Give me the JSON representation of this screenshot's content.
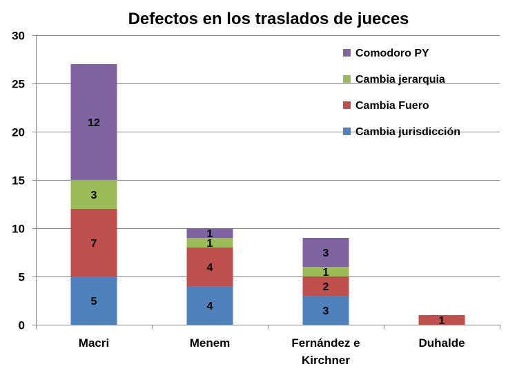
{
  "chart_data": {
    "type": "bar",
    "stacked": true,
    "title": "Defectos en los traslados de jueces",
    "xlabel": "",
    "ylabel": "",
    "ylim": [
      0,
      30
    ],
    "yticks": [
      0,
      5,
      10,
      15,
      20,
      25,
      30
    ],
    "grid": true,
    "legend_position": "top-right",
    "categories": [
      [
        "Macri"
      ],
      [
        "Menem"
      ],
      [
        "Fernández e",
        "Kirchner"
      ],
      [
        "Duhalde"
      ]
    ],
    "series": [
      {
        "name": "Cambia jurisdicción",
        "color": "#4F81BD",
        "values": [
          5,
          4,
          3,
          0
        ]
      },
      {
        "name": "Cambia Fuero",
        "color": "#C0504D",
        "values": [
          7,
          4,
          2,
          1
        ]
      },
      {
        "name": "Cambia jerarquia",
        "color": "#9BBB59",
        "values": [
          3,
          1,
          1,
          0
        ]
      },
      {
        "name": "Comodoro PY",
        "color": "#8064A2",
        "values": [
          12,
          1,
          3,
          0
        ]
      }
    ],
    "legend_order": [
      "Comodoro PY",
      "Cambia jerarquia",
      "Cambia Fuero",
      "Cambia jurisdicción"
    ]
  }
}
